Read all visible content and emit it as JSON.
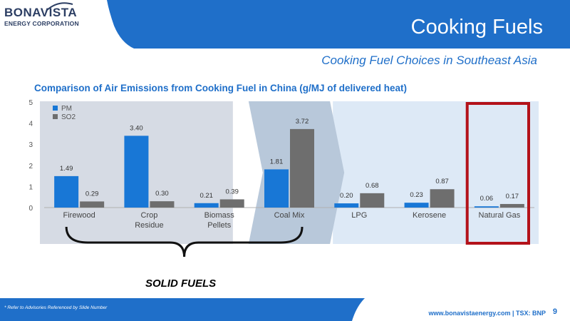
{
  "header": {
    "logo_name": "BONAVISTA",
    "logo_sub": "ENERGY CORPORATION",
    "title": "Cooking Fuels",
    "subtitle": "Cooking Fuel Choices in Southeast Asia"
  },
  "colors": {
    "band_blue": "#1f6fc9",
    "pm": "#1877d6",
    "so2": "#6e6e6e",
    "solid_bg": "#d6dbe4",
    "coal_bg": "#b8c8da",
    "other_bg": "#dde9f6",
    "highlight": "#b3121a"
  },
  "chart_data": {
    "type": "bar",
    "title": "Comparison of Air Emissions from Cooking Fuel in China (g/MJ of delivered heat)",
    "categories": [
      "Firewood",
      "Crop Residue",
      "Biomass Pellets",
      "Coal Mix",
      "LPG",
      "Kerosene",
      "Natural Gas"
    ],
    "category_lines": [
      [
        "Firewood"
      ],
      [
        "Crop",
        "Residue"
      ],
      [
        "Biomass",
        "Pellets"
      ],
      [
        "Coal Mix"
      ],
      [
        "LPG"
      ],
      [
        "Kerosene"
      ],
      [
        "Natural Gas"
      ]
    ],
    "series": [
      {
        "name": "PM",
        "values": [
          1.49,
          3.4,
          0.21,
          1.81,
          0.2,
          0.23,
          0.06
        ],
        "labels": [
          "1.49",
          "3.40",
          "0.21",
          "1.81",
          "0.20",
          "0.23",
          "0.06"
        ]
      },
      {
        "name": "SO2",
        "values": [
          0.29,
          0.3,
          0.39,
          3.72,
          0.68,
          0.87,
          0.17
        ],
        "labels": [
          "0.29",
          "0.30",
          "0.39",
          "3.72",
          "0.68",
          "0.87",
          "0.17"
        ]
      }
    ],
    "ylim": [
      0,
      5
    ],
    "yticks": [
      0,
      1,
      2,
      3,
      4,
      5
    ],
    "legend": "top-left",
    "grid": false,
    "group_label": "SOLID FUELS"
  },
  "footer": {
    "note": "* Refer to Advisories Referenced by Slide Number",
    "site": "www.bonavistaenergy.com  |  TSX: BNP",
    "page": "9"
  }
}
